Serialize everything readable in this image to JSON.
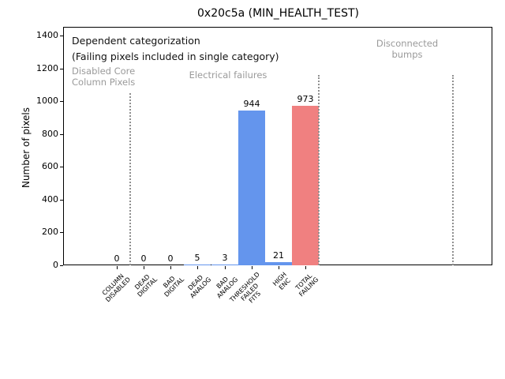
{
  "window": {
    "title": "0x20c5a (MIN_HEALTH_TEST)"
  },
  "chart_data": {
    "type": "bar",
    "title": "0x20c5a (MIN_HEALTH_TEST)",
    "xlabel": "",
    "ylabel": "Number of pixels",
    "ylim": [
      0,
      1453
    ],
    "yticks": [
      0,
      200,
      400,
      600,
      800,
      1000,
      1200,
      1400
    ],
    "grid": false,
    "legend_position": "none",
    "categories": [
      "COLUMN\nDISABLED",
      "DEAD\nDIGITAL",
      "BAD\nDIGITAL",
      "DEAD\nANALOG",
      "BAD\nANALOG",
      "THRESHOLD\nFAILED\nFITS",
      "HIGH\nENC",
      "TOTAL\nFAILING"
    ],
    "values": [
      0,
      0,
      0,
      5,
      3,
      944,
      21,
      973
    ],
    "value_labels": [
      "0",
      "0",
      "0",
      "5",
      "3",
      "944",
      "21",
      "973"
    ],
    "bar_colors": [
      "#6495ed",
      "#6495ed",
      "#6495ed",
      "#6495ed",
      "#6495ed",
      "#6495ed",
      "#6495ed",
      "#f08080"
    ],
    "colors": {
      "bar_default": "#6495ed",
      "bar_total": "#f08080",
      "region_text": "#9a9a9a",
      "separator": "#8f8f8f"
    },
    "annotations": {
      "primary": "Dependent categorization",
      "secondary": "(Failing pixels included in single category)",
      "regions": [
        {
          "label": "Disabled Core\nColumn Pixels"
        },
        {
          "label": "Electrical failures"
        },
        {
          "label": "Disconnected\nbumps"
        }
      ]
    },
    "separators": {
      "style": "dotted",
      "category_positions": [
        0.5,
        7.5,
        12.5
      ],
      "top_values": [
        1049,
        1159,
        1159
      ]
    }
  }
}
